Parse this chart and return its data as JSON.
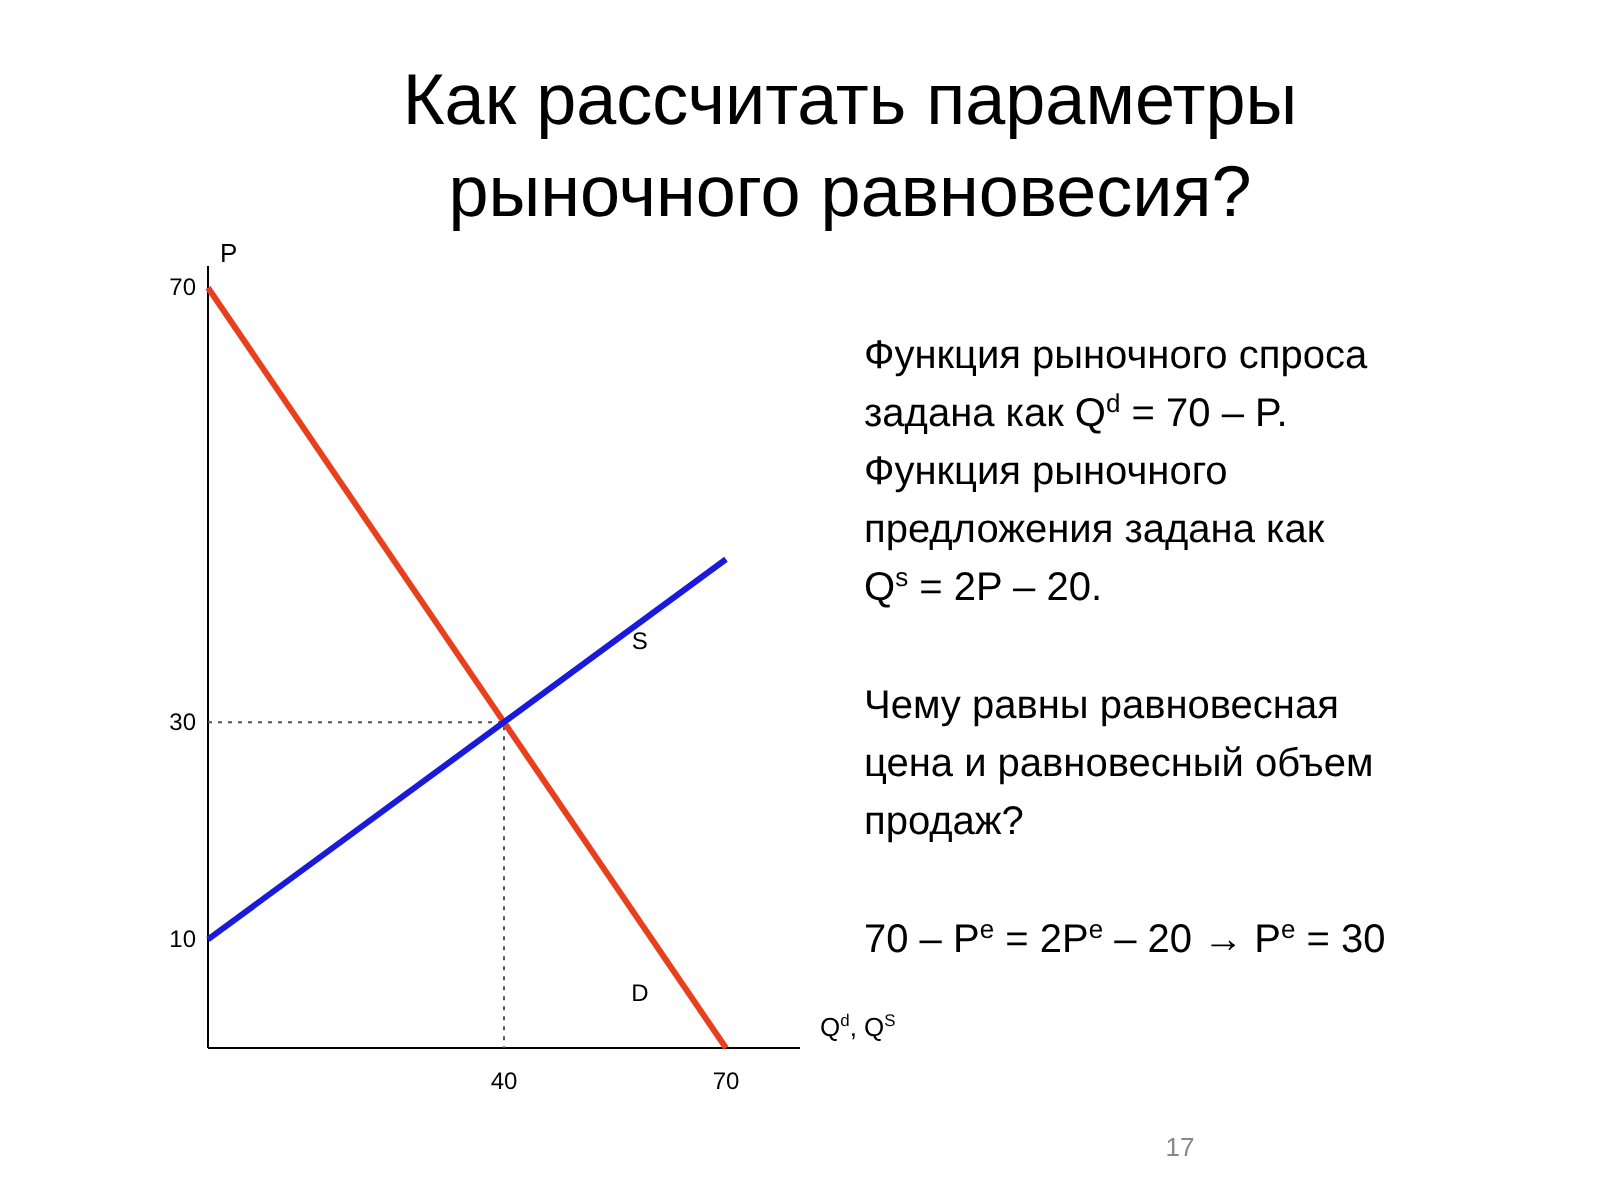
{
  "chart_data": {
    "type": "line",
    "title": "Как рассчитать параметры рыночного равновесия?",
    "xlabel": "Q$^{d}$, Q$^{S}$",
    "ylabel": "P",
    "xlim": [
      0,
      80
    ],
    "ylim": [
      0,
      72
    ],
    "xticks": [
      40,
      70
    ],
    "yticks": [
      10,
      30,
      70
    ],
    "grid": false,
    "legend": false,
    "marker": "none",
    "series": [
      {
        "name": "D",
        "color": "#e8401c",
        "x": [
          0,
          70
        ],
        "values": [
          70,
          0
        ],
        "line_style": "solid"
      },
      {
        "name": "S",
        "color": "#1a1adb",
        "x": [
          0,
          70
        ],
        "values": [
          10,
          45
        ],
        "line_style": "solid"
      },
      {
        "color": "#555555",
        "x": [
          0,
          40,
          40
        ],
        "values": [
          30,
          30,
          0
        ],
        "line_style": "dotted"
      }
    ],
    "annotations": [
      "Функция рыночного спроса",
      "задана как  Q$^{d}$ = 70 – P.",
      "Функция рыночного",
      "предложения задана как",
      "Q$^{s}$ = 2P – 20.",
      "Чему равны равновесная",
      "цена и равновесный объем",
      "продаж?",
      "70 – P$^{e}$ = 2P$^{e}$ – 20 → P$^{e}$ = 30",
      "17"
    ]
  }
}
